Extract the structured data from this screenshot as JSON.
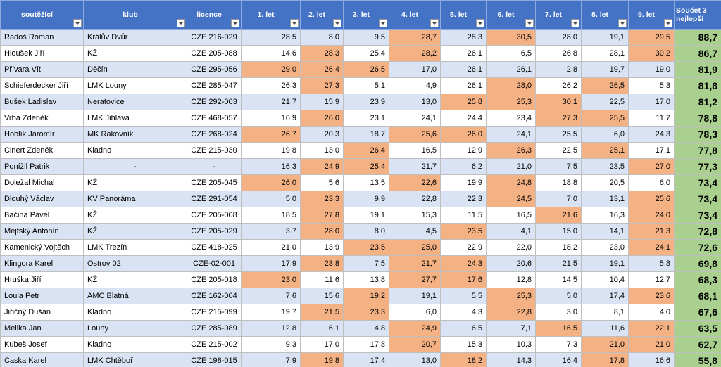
{
  "table": {
    "header": [
      "soutěžící",
      "klub",
      "licence",
      "1. let",
      "2. let",
      "3. let",
      "4. let",
      "5. let",
      "6. let",
      "7. let",
      "8. let",
      "9. let",
      "Součet 3 nejlepší"
    ],
    "rows": [
      [
        "Radoš Roman",
        "Králův Dvůr",
        "CZE 216-029",
        "28,5",
        "8,0",
        "9,5",
        "28,7",
        "28,3",
        "30,5",
        "28,0",
        "19,1",
        "29,5",
        "88,7"
      ],
      [
        "Hloušek Jiří",
        "KŽ",
        "CZE 205-088",
        "14,6",
        "28,3",
        "25,4",
        "28,2",
        "26,1",
        "6,5",
        "26,8",
        "28,1",
        "30,2",
        "86,7"
      ],
      [
        "Přívara Vít",
        "Děčín",
        "CZE 295-056",
        "29,0",
        "26,4",
        "26,5",
        "17,0",
        "26,1",
        "26,1",
        "2,8",
        "19,7",
        "19,0",
        "81,9"
      ],
      [
        "Schieferdecker Jiří",
        "LMK Louny",
        "CZE 285-047",
        "26,3",
        "27,3",
        "5,1",
        "4,9",
        "26,1",
        "28,0",
        "26,2",
        "26,5",
        "5,3",
        "81,8"
      ],
      [
        "Bušek Ladislav",
        "Neratovice",
        "CZE 292-003",
        "21,7",
        "15,9",
        "23,9",
        "13,0",
        "25,8",
        "25,3",
        "30,1",
        "22,5",
        "17,0",
        "81,2"
      ],
      [
        "Vrba Zdeněk",
        "LMK Jihlava",
        "CZE 468-057",
        "16,9",
        "26,0",
        "23,1",
        "24,1",
        "24,4",
        "23,4",
        "27,3",
        "25,5",
        "11,7",
        "78,8"
      ],
      [
        "Hoblík Jaromír",
        "MK Rakovník",
        "CZE 268-024",
        "26,7",
        "20,3",
        "18,7",
        "25,6",
        "26,0",
        "24,1",
        "25,5",
        "6,0",
        "24,3",
        "78,3"
      ],
      [
        "Cinert Zdeněk",
        "Kladno",
        "CZE 215-030",
        "19,8",
        "13,0",
        "26,4",
        "16,5",
        "12,9",
        "26,3",
        "22,5",
        "25,1",
        "17,1",
        "77,8"
      ],
      [
        "Ponížil Patrik",
        "-",
        "-",
        "16,3",
        "24,9",
        "25,4",
        "21,7",
        "6,2",
        "21,0",
        "7,5",
        "23,5",
        "27,0",
        "77,3"
      ],
      [
        "Doležal Michal",
        "KŽ",
        "CZE 205-045",
        "26,0",
        "5,6",
        "13,5",
        "22,6",
        "19,9",
        "24,8",
        "18,8",
        "20,5",
        "6,0",
        "73,4"
      ],
      [
        "Dlouhý Václav",
        "KV Panoráma",
        "CZE 291-054",
        "5,0",
        "23,3",
        "9,9",
        "22,8",
        "22,3",
        "24,5",
        "7,0",
        "13,1",
        "25,6",
        "73,4"
      ],
      [
        "Bačina Pavel",
        "KŽ",
        "CZE 205-008",
        "18,5",
        "27,8",
        "19,1",
        "15,3",
        "11,5",
        "16,5",
        "21,6",
        "16,3",
        "24,0",
        "73,4"
      ],
      [
        "Mejtský Antonín",
        "KŽ",
        "CZE 205-029",
        "3,7",
        "28,0",
        "8,0",
        "4,5",
        "23,5",
        "4,1",
        "15,0",
        "14,1",
        "21,3",
        "72,8"
      ],
      [
        "Kamenický Vojtěch",
        "LMK Trezín",
        "CZE 418-025",
        "21,0",
        "13,9",
        "23,5",
        "25,0",
        "22,9",
        "22,0",
        "18,2",
        "23,0",
        "24,1",
        "72,6"
      ],
      [
        "Klingora Karel",
        "Ostrov 02",
        "CZE-02-001",
        "17,9",
        "23,8",
        "7,5",
        "21,7",
        "24,3",
        "20,6",
        "21,5",
        "19,1",
        "5,8",
        "69,8"
      ],
      [
        "Hruška Jiří",
        "KŽ",
        "CZE 205-018",
        "23,0",
        "11,6",
        "13,8",
        "27,7",
        "17,6",
        "12,8",
        "14,5",
        "10,4",
        "12,7",
        "68,3"
      ],
      [
        "Loula Petr",
        "AMC Blatná",
        "CZE 162-004",
        "7,6",
        "15,6",
        "19,2",
        "19,1",
        "5,5",
        "25,3",
        "5,0",
        "17,4",
        "23,6",
        "68,1"
      ],
      [
        "Jiřičný Dušan",
        "Kladno",
        "CZE 215-099",
        "19,7",
        "21,5",
        "23,3",
        "6,0",
        "4,3",
        "22,8",
        "3,0",
        "8,1",
        "4,0",
        "67,6"
      ],
      [
        "Melika Jan",
        "Louny",
        "CZE 285-089",
        "12,8",
        "6,1",
        "4,8",
        "24,9",
        "6,5",
        "7,1",
        "16,5",
        "11,6",
        "22,1",
        "63,5"
      ],
      [
        "Kubeš Josef",
        "Kladno",
        "CZE 215-002",
        "9,3",
        "17,0",
        "17,8",
        "20,7",
        "15,3",
        "10,3",
        "7,3",
        "21,0",
        "21,0",
        "62,7"
      ],
      [
        "Caska Karel",
        "LMK Chtěboř",
        "CZE 198-015",
        "7,9",
        "19,8",
        "17,4",
        "13,0",
        "18,2",
        "14,3",
        "16,4",
        "17,8",
        "16,6",
        "55,8"
      ]
    ]
  }
}
